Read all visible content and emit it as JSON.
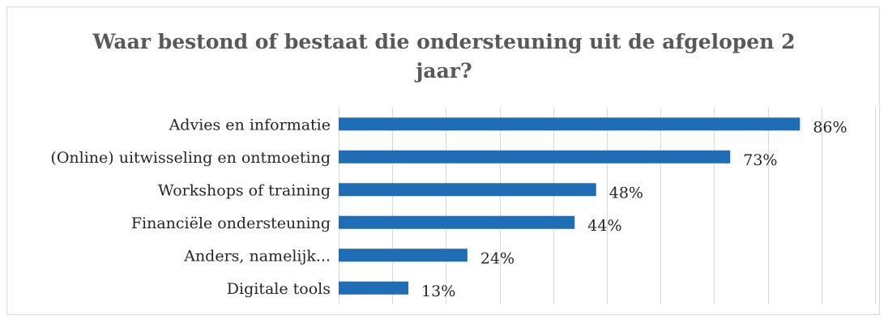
{
  "chart_data": {
    "type": "bar",
    "orientation": "horizontal",
    "title_lines": [
      "Waar bestond of bestaat die ondersteuning uit de afgelopen 2",
      "jaar?"
    ],
    "categories": [
      "Advies en informatie",
      "(Online) uitwisseling en ontmoeting",
      "Workshops of training",
      "Financiële ondersteuning",
      "Anders, namelijk...",
      "Digitale tools"
    ],
    "values": [
      86,
      73,
      48,
      44,
      24,
      13
    ],
    "value_labels": [
      "86%",
      "73%",
      "48%",
      "44%",
      "24%",
      "13%"
    ],
    "xlim": [
      0,
      100
    ],
    "grid": true,
    "grid_step": 10,
    "bar_color": "#1f6eb5",
    "grid_color": "#d9d9d9"
  }
}
